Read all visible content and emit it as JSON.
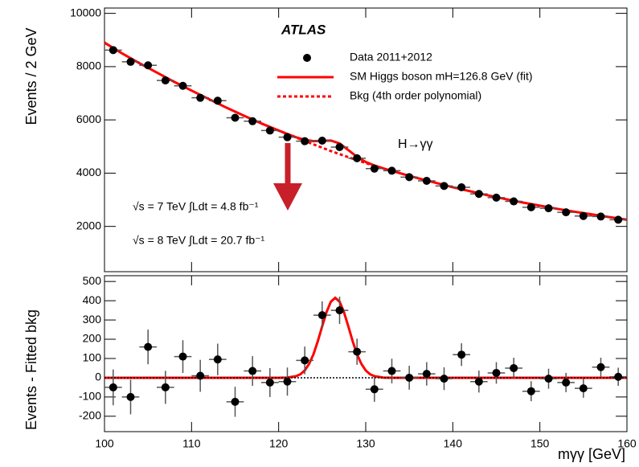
{
  "chart_data": [
    {
      "type": "scatter",
      "y_label": "Events / 2 GeV",
      "experiment": "ATLAS",
      "process": "H→γγ",
      "lumi_7": "√s = 7 TeV ∫Ldt = 4.8 fb⁻¹",
      "lumi_8": "√s = 8 TeV ∫Ldt = 20.7 fb⁻¹",
      "xlim": [
        100,
        160
      ],
      "xticks": [
        100,
        110,
        120,
        130,
        140,
        150,
        160
      ],
      "ylim": [
        300,
        10200
      ],
      "yticks": [
        2000,
        4000,
        6000,
        8000,
        10000
      ],
      "series": [
        {
          "name": "Data 2011+2012",
          "color": "#000000",
          "style": "points",
          "x": [
            101,
            103,
            105,
            107,
            109,
            111,
            113,
            115,
            117,
            119,
            121,
            123,
            125,
            127,
            129,
            131,
            133,
            135,
            137,
            139,
            141,
            143,
            145,
            147,
            149,
            151,
            153,
            155,
            157,
            159
          ],
          "values": [
            8620,
            8180,
            8050,
            7480,
            7280,
            6830,
            6720,
            6080,
            5950,
            5600,
            5350,
            5200,
            5220,
            4980,
            4560,
            4170,
            4090,
            3850,
            3710,
            3520,
            3470,
            3220,
            3080,
            2940,
            2720,
            2680,
            2530,
            2390,
            2370,
            2250
          ],
          "errors": [
            93,
            90,
            90,
            86,
            85,
            83,
            82,
            78,
            77,
            75,
            73,
            72,
            72,
            71,
            68,
            65,
            64,
            62,
            61,
            59,
            59,
            57,
            56,
            54,
            52,
            52,
            50,
            49,
            49,
            47
          ]
        },
        {
          "name": "SM Higgs boson mH=126.8 GeV (fit)",
          "color": "#ff0000",
          "style": "line",
          "x": [
            100,
            102,
            104,
            106,
            108,
            110,
            112,
            114,
            116,
            118,
            120,
            121,
            122,
            123,
            124,
            125,
            126,
            127,
            128,
            129,
            130,
            131,
            132,
            134,
            136,
            138,
            140,
            142,
            144,
            146,
            148,
            150,
            152,
            154,
            156,
            158,
            160
          ],
          "values": [
            8900,
            8500,
            8130,
            7780,
            7430,
            7100,
            6780,
            6460,
            6160,
            5870,
            5600,
            5471,
            5348,
            5248,
            5202,
            5217,
            5225,
            5115,
            4867,
            4612,
            4418,
            4288,
            4181,
            3990,
            3810,
            3640,
            3470,
            3320,
            3170,
            3030,
            2900,
            2780,
            2660,
            2550,
            2450,
            2350,
            2250
          ]
        },
        {
          "name": "Bkg (4th order polynomial)",
          "color": "#ff0000",
          "style": "dashed",
          "x": [
            118,
            120,
            122,
            124,
            126,
            128,
            130,
            132
          ],
          "values": [
            5870,
            5600,
            5340,
            5080,
            4830,
            4600,
            4380,
            4180
          ]
        }
      ]
    },
    {
      "type": "scatter",
      "y_label": "Events - Fitted bkg",
      "x_label": "mγγ [GeV]",
      "xlim": [
        100,
        160
      ],
      "xticks": [
        100,
        110,
        120,
        130,
        140,
        150,
        160
      ],
      "ylim": [
        -280,
        530
      ],
      "yticks": [
        -200,
        -100,
        0,
        100,
        200,
        300,
        400,
        500
      ],
      "series": [
        {
          "color": "#000000",
          "style": "points",
          "x": [
            101,
            103,
            105,
            107,
            109,
            111,
            113,
            115,
            117,
            119,
            121,
            123,
            125,
            127,
            129,
            131,
            133,
            135,
            137,
            139,
            141,
            143,
            145,
            147,
            149,
            151,
            153,
            155,
            157,
            159
          ],
          "values": [
            -50,
            -100,
            160,
            -50,
            110,
            10,
            95,
            -125,
            35,
            -25,
            -20,
            90,
            325,
            350,
            135,
            -60,
            35,
            0,
            20,
            -5,
            120,
            -20,
            25,
            50,
            -70,
            -5,
            -25,
            -55,
            55,
            5
          ],
          "errors": [
            93,
            90,
            90,
            86,
            85,
            83,
            82,
            78,
            77,
            75,
            73,
            72,
            72,
            71,
            68,
            65,
            64,
            62,
            61,
            59,
            59,
            57,
            56,
            54,
            52,
            52,
            50,
            49,
            49,
            47
          ]
        },
        {
          "color": "#ff0000",
          "style": "line",
          "x": [
            100,
            118,
            119,
            120,
            121,
            122,
            122.5,
            123,
            123.5,
            124,
            124.5,
            125,
            125.5,
            126,
            126.5,
            127,
            127.5,
            128,
            128.5,
            129,
            129.5,
            130,
            130.5,
            131,
            132,
            133,
            134,
            160
          ],
          "values": [
            0,
            0,
            0,
            0,
            1,
            8,
            18,
            38,
            72,
            122,
            190,
            267,
            341,
            395,
            415,
            395,
            341,
            267,
            190,
            122,
            72,
            38,
            18,
            8,
            1,
            0,
            0,
            0
          ]
        },
        {
          "color": "#000000",
          "style": "dotted",
          "x": [
            100,
            160
          ],
          "values": [
            0,
            0
          ]
        }
      ]
    }
  ]
}
